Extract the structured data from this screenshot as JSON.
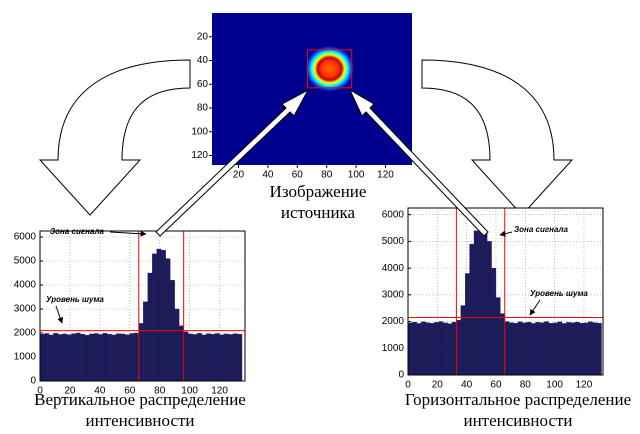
{
  "chart_data": [
    {
      "type": "image",
      "caption": [
        "Изображение",
        "источника"
      ],
      "xlim": [
        2,
        138
      ],
      "ylim": [
        0,
        128
      ],
      "y_inverted": true,
      "xticks": [
        20,
        40,
        60,
        80,
        100,
        120
      ],
      "yticks": [
        20,
        40,
        60,
        80,
        100,
        120
      ],
      "background": "#00008f",
      "box": {
        "x": [
          67,
          97
        ],
        "y": [
          31,
          63
        ],
        "color": "#ff0000"
      }
    },
    {
      "type": "histogram",
      "caption": [
        "Вертикальное распределение",
        "интенсивности"
      ],
      "signal_label": "Зона сигнала",
      "noise_label": "Уровень шума",
      "xlim": [
        0,
        137
      ],
      "ylim": [
        0,
        6250
      ],
      "grid": true,
      "color": "#1c1c5a",
      "line_color": "#ff0000",
      "xticks": [
        0,
        20,
        40,
        60,
        80,
        100,
        120
      ],
      "yticks": [
        0,
        1000,
        2000,
        3000,
        4000,
        5000,
        6000
      ],
      "zone": [
        66,
        96
      ],
      "noise_level": 2100,
      "bins": [
        0,
        3,
        6,
        9,
        12,
        15,
        18,
        21,
        24,
        27,
        30,
        33,
        36,
        39,
        42,
        45,
        48,
        51,
        54,
        57,
        60,
        63,
        66,
        69,
        72,
        75,
        78,
        81,
        84,
        87,
        90,
        93,
        96,
        99,
        102,
        105,
        108,
        111,
        114,
        117,
        120,
        123,
        126,
        129,
        132,
        135
      ],
      "counts": [
        1950,
        1980,
        1920,
        1990,
        1940,
        1960,
        1930,
        1970,
        2000,
        1950,
        1910,
        1960,
        1980,
        1940,
        1990,
        1950,
        1920,
        1970,
        1960,
        1930,
        1980,
        2000,
        2400,
        3300,
        4500,
        5300,
        5500,
        5450,
        5100,
        4200,
        3000,
        2300,
        2050,
        1960,
        1940,
        1990,
        1920,
        1970,
        1950,
        1980,
        1930,
        1960,
        1940,
        1970,
        1950
      ]
    },
    {
      "type": "histogram",
      "caption": [
        "Горизонтальное распределение",
        "интенсивности"
      ],
      "signal_label": "Зона сигнала",
      "noise_label": "Уровень шума",
      "xlim": [
        0,
        133
      ],
      "ylim": [
        0,
        6250
      ],
      "grid": true,
      "color": "#1c1c5a",
      "line_color": "#ff0000",
      "xticks": [
        0,
        20,
        40,
        60,
        80,
        100,
        120
      ],
      "yticks": [
        0,
        1000,
        2000,
        3000,
        4000,
        5000,
        6000
      ],
      "zone": [
        33,
        66
      ],
      "noise_level": 2150,
      "bins": [
        0,
        3,
        6,
        9,
        12,
        15,
        18,
        21,
        24,
        27,
        30,
        33,
        36,
        39,
        42,
        45,
        48,
        51,
        54,
        57,
        60,
        63,
        66,
        69,
        72,
        75,
        78,
        81,
        84,
        87,
        90,
        93,
        96,
        99,
        102,
        105,
        108,
        111,
        114,
        117,
        120,
        123,
        126,
        129,
        132
      ],
      "counts": [
        1950,
        1980,
        1930,
        1990,
        1960,
        1940,
        1970,
        2000,
        1950,
        1920,
        1980,
        2050,
        2600,
        3800,
        4900,
        5400,
        5450,
        5350,
        5000,
        4000,
        2900,
        2300,
        2000,
        1960,
        1940,
        1990,
        1950,
        1980,
        1930,
        1970,
        1960,
        2000,
        1940,
        1950,
        1990,
        1930,
        1970,
        1960,
        1980,
        1940,
        1950,
        1990,
        1960,
        1940
      ]
    }
  ]
}
